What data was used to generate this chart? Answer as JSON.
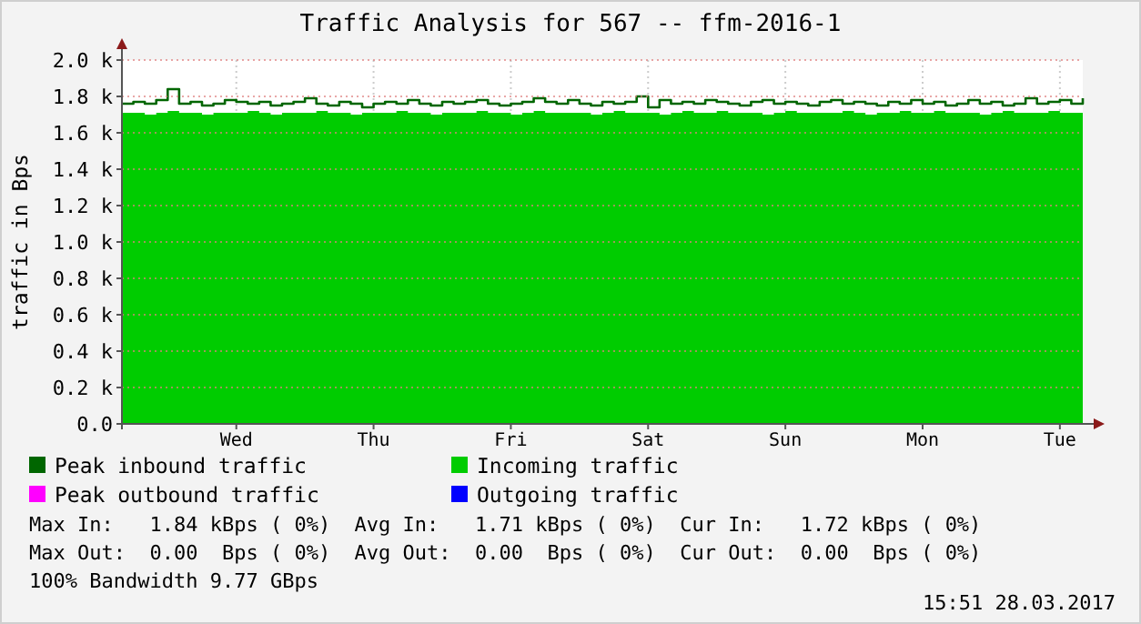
{
  "chart_data": {
    "type": "area",
    "title": "Traffic Analysis for 567 -- ffm-2016-1",
    "ylabel": "traffic in Bps",
    "categories": [
      null,
      null,
      null,
      null,
      null,
      null,
      null,
      null,
      null,
      null,
      "Wed",
      null,
      null,
      null,
      null,
      null,
      null,
      null,
      null,
      null,
      null,
      null,
      "Thu",
      null,
      null,
      null,
      null,
      null,
      null,
      null,
      null,
      null,
      null,
      null,
      "Fri",
      null,
      null,
      null,
      null,
      null,
      null,
      null,
      null,
      null,
      null,
      null,
      "Sat",
      null,
      null,
      null,
      null,
      null,
      null,
      null,
      null,
      null,
      null,
      null,
      "Sun",
      null,
      null,
      null,
      null,
      null,
      null,
      null,
      null,
      null,
      null,
      null,
      "Mon",
      null,
      null,
      null,
      null,
      null,
      null,
      null,
      null,
      null,
      null,
      null,
      "Tue",
      null,
      null
    ],
    "ylim": [
      0,
      2.0
    ],
    "yticks": [
      {
        "value": 0,
        "label": "0.0"
      },
      {
        "value": 0.2,
        "label": "0.2 k"
      },
      {
        "value": 0.4,
        "label": "0.4 k"
      },
      {
        "value": 0.6,
        "label": "0.6 k"
      },
      {
        "value": 0.8,
        "label": "0.8 k"
      },
      {
        "value": 1.0,
        "label": "1.0 k"
      },
      {
        "value": 1.2,
        "label": "1.2 k"
      },
      {
        "value": 1.4,
        "label": "1.4 k"
      },
      {
        "value": 1.6,
        "label": "1.6 k"
      },
      {
        "value": 1.8,
        "label": "1.8 k"
      },
      {
        "value": 2.0,
        "label": "2.0 k"
      }
    ],
    "grid": true,
    "legend": "bottom",
    "series": [
      {
        "name": "Peak inbound traffic",
        "type": "step",
        "color": "#006600",
        "values": [
          1.76,
          1.77,
          1.76,
          1.78,
          1.84,
          1.76,
          1.77,
          1.75,
          1.76,
          1.78,
          1.77,
          1.76,
          1.77,
          1.75,
          1.76,
          1.77,
          1.79,
          1.76,
          1.75,
          1.77,
          1.76,
          1.74,
          1.76,
          1.77,
          1.76,
          1.78,
          1.76,
          1.75,
          1.77,
          1.76,
          1.77,
          1.78,
          1.76,
          1.75,
          1.76,
          1.77,
          1.79,
          1.77,
          1.76,
          1.78,
          1.76,
          1.75,
          1.77,
          1.76,
          1.77,
          1.8,
          1.74,
          1.78,
          1.76,
          1.77,
          1.76,
          1.78,
          1.77,
          1.76,
          1.75,
          1.77,
          1.78,
          1.76,
          1.77,
          1.76,
          1.75,
          1.77,
          1.78,
          1.76,
          1.77,
          1.76,
          1.75,
          1.77,
          1.76,
          1.78,
          1.76,
          1.77,
          1.75,
          1.76,
          1.78,
          1.76,
          1.77,
          1.75,
          1.76,
          1.79,
          1.76,
          1.77,
          1.78,
          1.76,
          1.79
        ]
      },
      {
        "name": "Incoming traffic",
        "color": "#00cc00",
        "values": [
          1.71,
          1.71,
          1.7,
          1.71,
          1.72,
          1.71,
          1.71,
          1.7,
          1.71,
          1.71,
          1.71,
          1.72,
          1.71,
          1.7,
          1.71,
          1.71,
          1.71,
          1.72,
          1.71,
          1.71,
          1.7,
          1.71,
          1.71,
          1.71,
          1.72,
          1.71,
          1.71,
          1.7,
          1.71,
          1.71,
          1.71,
          1.72,
          1.71,
          1.71,
          1.7,
          1.71,
          1.72,
          1.71,
          1.71,
          1.71,
          1.71,
          1.7,
          1.71,
          1.72,
          1.71,
          1.71,
          1.71,
          1.7,
          1.71,
          1.72,
          1.71,
          1.71,
          1.72,
          1.71,
          1.71,
          1.71,
          1.7,
          1.71,
          1.72,
          1.71,
          1.71,
          1.71,
          1.71,
          1.72,
          1.71,
          1.7,
          1.71,
          1.71,
          1.72,
          1.71,
          1.71,
          1.72,
          1.71,
          1.71,
          1.71,
          1.7,
          1.71,
          1.72,
          1.71,
          1.71,
          1.71,
          1.72,
          1.71,
          1.71,
          1.72
        ]
      },
      {
        "name": "Peak outbound traffic",
        "type": "step",
        "color": "#ff00ff",
        "values": [
          null,
          null,
          null,
          null,
          null,
          null,
          null,
          null,
          null,
          null,
          null,
          null,
          null,
          null,
          null,
          null,
          null,
          null,
          null,
          null,
          null,
          null,
          null,
          null,
          null,
          null,
          null,
          null,
          null,
          null,
          null,
          null,
          null,
          null,
          null,
          null,
          null,
          null,
          null,
          null,
          null,
          null,
          null,
          null,
          null,
          null,
          null,
          null,
          null,
          null,
          null,
          null,
          null,
          null,
          null,
          null,
          null,
          null,
          null,
          null,
          null,
          null,
          null,
          null,
          null,
          null,
          null,
          null,
          null,
          null,
          null,
          null,
          null,
          null,
          null,
          null,
          null,
          null,
          null,
          null,
          null,
          null,
          null,
          null,
          null
        ]
      },
      {
        "name": "Outgoing traffic",
        "color": "#0000ff",
        "values": [
          null,
          null,
          null,
          null,
          null,
          null,
          null,
          null,
          null,
          null,
          null,
          null,
          null,
          null,
          null,
          null,
          null,
          null,
          null,
          null,
          null,
          null,
          null,
          null,
          null,
          null,
          null,
          null,
          null,
          null,
          null,
          null,
          null,
          null,
          null,
          null,
          null,
          null,
          null,
          null,
          null,
          null,
          null,
          null,
          null,
          null,
          null,
          null,
          null,
          null,
          null,
          null,
          null,
          null,
          null,
          null,
          null,
          null,
          null,
          null,
          null,
          null,
          null,
          null,
          null,
          null,
          null,
          null,
          null,
          null,
          null,
          null,
          null,
          null,
          null,
          null,
          null,
          null,
          null,
          null,
          null,
          null,
          null,
          null,
          null
        ]
      }
    ],
    "annotations": [
      "Max In:   1.84 kBps ( 0%)  Avg In:   1.71 kBps ( 0%)  Cur In:   1.72 kBps ( 0%)",
      "Max Out:  0.00  Bps ( 0%)  Avg Out:  0.00  Bps ( 0%)  Cur Out:  0.00  Bps ( 0%)",
      "100% Bandwidth 9.77 GBps",
      "15:51 28.03.2017"
    ]
  }
}
